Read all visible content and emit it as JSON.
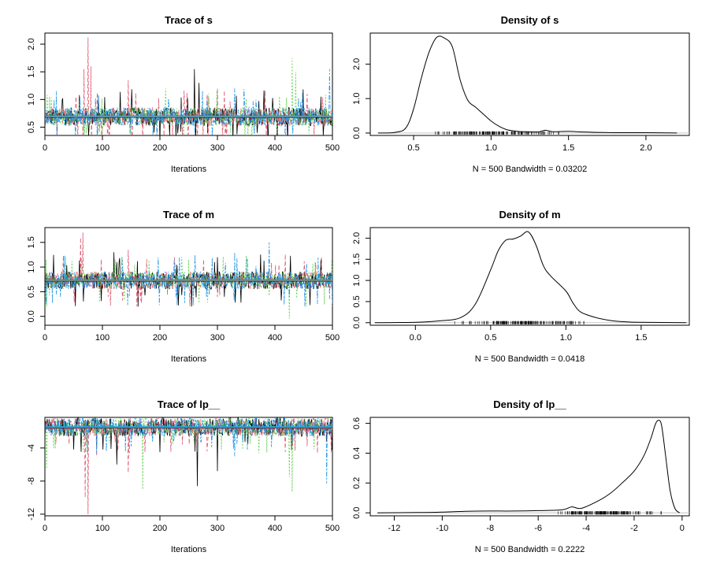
{
  "chart_data": [
    {
      "type": "line",
      "kind": "trace",
      "title": "Trace of s",
      "xlabel": "Iterations",
      "xlim": [
        0,
        500
      ],
      "ylim": [
        0.35,
        2.2
      ],
      "xticks": [
        0,
        100,
        200,
        300,
        400,
        500
      ],
      "xtick_labels": [
        "0",
        "100",
        "200",
        "300",
        "400",
        "500"
      ],
      "yticks": [
        0.5,
        1.0,
        1.5,
        2.0
      ],
      "ytick_labels": [
        "0.5",
        "1.0",
        "1.5",
        "2.0"
      ],
      "mean": 0.69,
      "series": [
        {
          "color": "#000000",
          "dash": "",
          "spikes": [
            [
              260,
              1.55
            ],
            [
              268,
              1.3
            ],
            [
              480,
              1.05
            ]
          ]
        },
        {
          "color": "#df536b",
          "dash": "5,3",
          "spikes": [
            [
              68,
              1.55
            ],
            [
              75,
              2.12
            ],
            [
              80,
              1.6
            ],
            [
              145,
              1.35
            ],
            [
              300,
              1.2
            ]
          ]
        },
        {
          "color": "#61d04f",
          "dash": "2,2",
          "spikes": [
            [
              8,
              1.05
            ],
            [
              210,
              1.2
            ],
            [
              430,
              1.75
            ],
            [
              436,
              1.5
            ]
          ]
        },
        {
          "color": "#2297e6",
          "dash": "6,2,2,2",
          "spikes": [
            [
              330,
              1.2
            ],
            [
              495,
              1.55
            ]
          ]
        }
      ]
    },
    {
      "type": "line",
      "kind": "density",
      "title": "Density of s",
      "xlabel": "N = 500   Bandwidth = 0.03202",
      "xlim": [
        0.22,
        2.28
      ],
      "ylim": [
        -0.07,
        2.9
      ],
      "xticks": [
        0.5,
        1.0,
        1.5,
        2.0
      ],
      "xtick_labels": [
        "0.5",
        "1.0",
        "1.5",
        "2.0"
      ],
      "yticks": [
        0.0,
        1.0,
        2.0
      ],
      "ytick_labels": [
        "0.0",
        "1.0",
        "2.0"
      ],
      "x": [
        0.27,
        0.38,
        0.45,
        0.5,
        0.55,
        0.6,
        0.65,
        0.7,
        0.75,
        0.8,
        0.85,
        0.9,
        0.95,
        1.0,
        1.05,
        1.1,
        1.15,
        1.2,
        1.3,
        1.35,
        1.4,
        1.5,
        1.6,
        1.8,
        2.0,
        2.2
      ],
      "y": [
        0.0,
        0.02,
        0.15,
        0.7,
        1.6,
        2.35,
        2.78,
        2.75,
        2.5,
        1.55,
        0.95,
        0.75,
        0.55,
        0.35,
        0.2,
        0.1,
        0.06,
        0.04,
        0.03,
        0.08,
        0.04,
        0.05,
        0.03,
        0.01,
        0.01,
        0.0
      ],
      "rug_range": [
        0.45,
        1.6
      ]
    },
    {
      "type": "line",
      "kind": "trace",
      "title": "Trace of m",
      "xlabel": "Iterations",
      "xlim": [
        0,
        500
      ],
      "ylim": [
        -0.18,
        1.8
      ],
      "xticks": [
        0,
        100,
        200,
        300,
        400,
        500
      ],
      "xtick_labels": [
        "0",
        "100",
        "200",
        "300",
        "400",
        "500"
      ],
      "yticks": [
        0.0,
        0.5,
        1.0,
        1.5
      ],
      "ytick_labels": [
        "0.0",
        "0.5",
        "1.0",
        "1.5"
      ],
      "mean": 0.73,
      "series": [
        {
          "color": "#000000",
          "dash": "",
          "spikes": [
            [
              120,
              1.3
            ],
            [
              255,
              0.2
            ],
            [
              300,
              1.2
            ],
            [
              480,
              1.15
            ]
          ]
        },
        {
          "color": "#df536b",
          "dash": "5,3",
          "spikes": [
            [
              62,
              1.6
            ],
            [
              66,
              1.7
            ],
            [
              145,
              1.35
            ],
            [
              160,
              0.2
            ],
            [
              225,
              1.2
            ]
          ]
        },
        {
          "color": "#61d04f",
          "dash": "2,2",
          "spikes": [
            [
              3,
              0.2
            ],
            [
              250,
              1.15
            ],
            [
              425,
              -0.05
            ],
            [
              470,
              1.1
            ]
          ]
        },
        {
          "color": "#2297e6",
          "dash": "6,2,2,2",
          "spikes": [
            [
              330,
              1.3
            ],
            [
              390,
              1.5
            ],
            [
              495,
              0.35
            ]
          ]
        }
      ]
    },
    {
      "type": "line",
      "kind": "density",
      "title": "Density of m",
      "xlabel": "N = 500   Bandwidth = 0.0418",
      "xlim": [
        -0.3,
        1.82
      ],
      "ylim": [
        -0.06,
        2.25
      ],
      "xticks": [
        0.0,
        0.5,
        1.0,
        1.5
      ],
      "xtick_labels": [
        "0.0",
        "0.5",
        "1.0",
        "1.5"
      ],
      "yticks": [
        0.0,
        0.5,
        1.0,
        1.5,
        2.0
      ],
      "ytick_labels": [
        "0.0",
        "0.5",
        "1.0",
        "1.5",
        "2.0"
      ],
      "x": [
        -0.27,
        0.0,
        0.15,
        0.3,
        0.4,
        0.5,
        0.55,
        0.6,
        0.65,
        0.7,
        0.75,
        0.8,
        0.85,
        0.9,
        1.0,
        1.05,
        1.1,
        1.2,
        1.3,
        1.4,
        1.5,
        1.8
      ],
      "y": [
        0.0,
        0.01,
        0.04,
        0.12,
        0.45,
        1.25,
        1.7,
        1.95,
        1.98,
        2.05,
        2.15,
        1.85,
        1.35,
        1.1,
        0.75,
        0.45,
        0.25,
        0.12,
        0.05,
        0.02,
        0.01,
        0.0
      ],
      "rug_range": [
        0.15,
        1.3
      ]
    },
    {
      "type": "line",
      "kind": "trace",
      "title": "Trace of lp__",
      "xlabel": "Iterations",
      "xlim": [
        0,
        500
      ],
      "ylim": [
        -12.2,
        -0.3
      ],
      "xticks": [
        0,
        100,
        200,
        300,
        400,
        500
      ],
      "xtick_labels": [
        "0",
        "100",
        "200",
        "300",
        "400",
        "500"
      ],
      "yticks": [
        -4,
        -8,
        -12
      ],
      "ytick_labels": [
        "-4",
        "-8",
        "-12"
      ],
      "mean": -1.5,
      "series": [
        {
          "color": "#000000",
          "dash": "",
          "spikes": [
            [
              125,
              -6.0
            ],
            [
              265,
              -8.6
            ],
            [
              300,
              -6.8
            ],
            [
              200,
              -4.5
            ]
          ]
        },
        {
          "color": "#df536b",
          "dash": "5,3",
          "spikes": [
            [
              70,
              -10.0
            ],
            [
              75,
              -12.0
            ],
            [
              145,
              -7.0
            ],
            [
              90,
              -5.0
            ]
          ]
        },
        {
          "color": "#61d04f",
          "dash": "2,2",
          "spikes": [
            [
              3,
              -6.5
            ],
            [
              170,
              -9.0
            ],
            [
              430,
              -9.3
            ],
            [
              425,
              -7.5
            ]
          ]
        },
        {
          "color": "#2297e6",
          "dash": "6,2,2,2",
          "spikes": [
            [
              330,
              -5.0
            ],
            [
              490,
              -8.3
            ]
          ]
        }
      ]
    },
    {
      "type": "line",
      "kind": "density",
      "title": "Density of lp__",
      "xlabel": "N = 500   Bandwidth = 0.2222",
      "xlim": [
        -13.0,
        0.3
      ],
      "ylim": [
        -0.02,
        0.64
      ],
      "xticks": [
        -12,
        -10,
        -8,
        -6,
        -4,
        -2,
        0
      ],
      "xtick_labels": [
        "-12",
        "-10",
        "-8",
        "-6",
        "-4",
        "-2",
        "0"
      ],
      "yticks": [
        0.0,
        0.2,
        0.4,
        0.6
      ],
      "ytick_labels": [
        "0.0",
        "0.2",
        "0.4",
        "0.6"
      ],
      "x": [
        -12.7,
        -11.0,
        -10.0,
        -9.0,
        -8.0,
        -7.0,
        -6.0,
        -5.0,
        -4.6,
        -4.2,
        -3.5,
        -3.0,
        -2.5,
        -2.0,
        -1.6,
        -1.3,
        -1.1,
        -0.95,
        -0.85,
        -0.7,
        -0.5,
        -0.3,
        -0.1
      ],
      "y": [
        0.0,
        0.002,
        0.005,
        0.01,
        0.012,
        0.012,
        0.015,
        0.02,
        0.04,
        0.03,
        0.08,
        0.13,
        0.2,
        0.28,
        0.38,
        0.5,
        0.6,
        0.62,
        0.58,
        0.4,
        0.15,
        0.03,
        0.0
      ],
      "rug_range": [
        -6.0,
        -0.5
      ]
    }
  ]
}
